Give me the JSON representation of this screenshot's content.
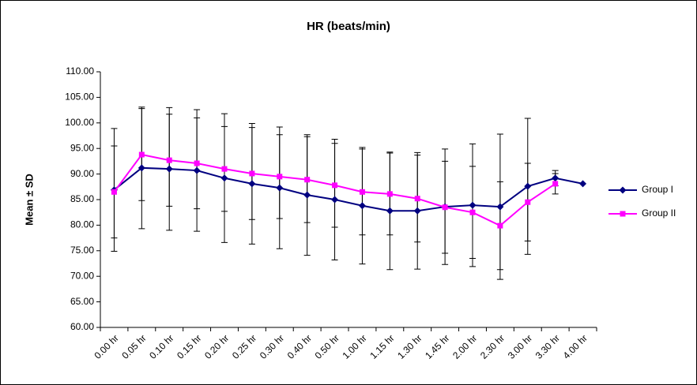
{
  "chart_data": {
    "type": "line",
    "title": "HR (beats/min)",
    "y_label": "Mean ± SD",
    "categories": [
      "0.00 hr",
      "0.05 hr",
      "0.10 hr",
      "0.15 hr",
      "0.20 hr",
      "0.25 hr",
      "0.30 hr",
      "0.40 hr",
      "0.50 hr",
      "1.00 hr",
      "1.15 hr",
      "1.30 hr",
      "1.45 hr",
      "2.00 hr",
      "2.30 hr",
      "3.00 hr",
      "3.30 hr",
      "4.00 hr"
    ],
    "series": [
      {
        "name": "Group I",
        "color": "#000080",
        "marker": "diamond",
        "values": [
          86.9,
          91.2,
          91.0,
          90.7,
          89.2,
          88.1,
          87.3,
          85.9,
          85.0,
          83.8,
          82.8,
          82.8,
          83.6,
          83.9,
          83.6,
          87.6,
          89.2,
          88.1
        ],
        "errors": [
          12.0,
          11.9,
          12.0,
          11.9,
          12.6,
          11.8,
          11.9,
          11.8,
          11.8,
          11.4,
          11.5,
          11.4,
          11.3,
          12.0,
          14.2,
          13.3,
          1.5,
          null
        ]
      },
      {
        "name": "Group II",
        "color": "#ff00ff",
        "marker": "square",
        "values": [
          86.5,
          93.8,
          92.7,
          92.1,
          91.0,
          90.1,
          89.5,
          88.9,
          87.8,
          86.5,
          86.1,
          85.2,
          83.5,
          82.5,
          79.9,
          84.5,
          88.1,
          null
        ],
        "errors": [
          9.0,
          9.0,
          9.0,
          8.9,
          8.3,
          9.0,
          8.2,
          8.4,
          8.2,
          8.4,
          8.0,
          8.5,
          9.0,
          9.0,
          8.6,
          7.6,
          2.0,
          null
        ]
      }
    ],
    "ylim": [
      60,
      110
    ],
    "yticks": [
      {
        "value": 60,
        "label": "60.00"
      },
      {
        "value": 65,
        "label": "65.00"
      },
      {
        "value": 70,
        "label": "70.00"
      },
      {
        "value": 75,
        "label": "75.00"
      },
      {
        "value": 80,
        "label": "80.00"
      },
      {
        "value": 85,
        "label": "85.00"
      },
      {
        "value": 90,
        "label": "90.00"
      },
      {
        "value": 95,
        "label": "95.00"
      },
      {
        "value": 100,
        "label": "100.00"
      },
      {
        "value": 105,
        "label": "105.00"
      },
      {
        "value": 110,
        "label": "110.00"
      }
    ],
    "legend": "right",
    "grid": false
  }
}
